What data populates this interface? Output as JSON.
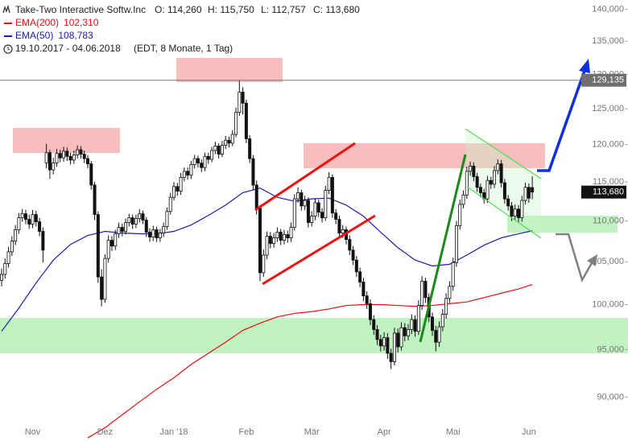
{
  "chart_data": {
    "type": "candlestick",
    "title": "Take-Two Interactive Softw.Inc",
    "ohlc_labels": [
      "O: 114,260",
      "H: 115,750",
      "L: 112,757",
      "C: 113,680"
    ],
    "date_range": "19.10.2017 - 04.06.2018",
    "period": "(EDT, 8 Monate, 1 Tag)",
    "log_scale": true,
    "grid": false,
    "up_color": "#ffffff",
    "down_color": "#111111",
    "ylim": [
      85600,
      141500
    ],
    "yticks": [
      {
        "value": 90000,
        "label": "90,000"
      },
      {
        "value": 95000,
        "label": "95,000"
      },
      {
        "value": 100000,
        "label": "100,000"
      },
      {
        "value": 105000,
        "label": "105,000"
      },
      {
        "value": 110000,
        "label": "110,000"
      },
      {
        "value": 115000,
        "label": "115,000"
      },
      {
        "value": 120000,
        "label": "120,000"
      },
      {
        "value": 125000,
        "label": "125,000"
      },
      {
        "value": 130000,
        "label": "130,000"
      },
      {
        "value": 135000,
        "label": "135,000"
      },
      {
        "value": 140000,
        "label": "140,000"
      }
    ],
    "price_line": {
      "value": 129135,
      "label": "129,135"
    },
    "last_price": {
      "value": 113680,
      "label": "113,680"
    },
    "categories": [
      null,
      null,
      null,
      null,
      null,
      null,
      null,
      null,
      null,
      "Nov",
      null,
      null,
      null,
      null,
      null,
      null,
      null,
      null,
      null,
      null,
      null,
      null,
      null,
      null,
      null,
      null,
      null,
      null,
      null,
      null,
      "Dez",
      null,
      null,
      null,
      null,
      null,
      null,
      null,
      null,
      null,
      null,
      null,
      null,
      null,
      null,
      null,
      null,
      null,
      null,
      null,
      "Jan '18",
      null,
      null,
      null,
      null,
      null,
      null,
      null,
      null,
      null,
      null,
      null,
      null,
      null,
      null,
      null,
      null,
      null,
      null,
      null,
      null,
      "Feb",
      null,
      null,
      null,
      null,
      null,
      null,
      null,
      null,
      null,
      null,
      null,
      null,
      null,
      null,
      null,
      null,
      null,
      null,
      "Mär",
      null,
      null,
      null,
      null,
      null,
      null,
      null,
      null,
      null,
      null,
      null,
      null,
      null,
      null,
      null,
      null,
      null,
      null,
      null,
      null,
      "Apr",
      null,
      null,
      null,
      null,
      null,
      null,
      null,
      null,
      null,
      null,
      null,
      null,
      null,
      null,
      null,
      null,
      null,
      null,
      null,
      "Mai",
      null,
      null,
      null,
      null,
      null,
      null,
      null,
      null,
      null,
      null,
      null,
      null,
      null,
      null,
      null,
      null,
      null,
      null,
      null,
      null,
      null,
      "Jun",
      null
    ],
    "open": [
      102800,
      103500,
      104800,
      106200,
      107500,
      108900,
      110400,
      110900,
      110200,
      109600,
      110800,
      109900,
      108700,
      117500,
      118900,
      116600,
      117500,
      118800,
      118200,
      119100,
      118400,
      117900,
      118600,
      119300,
      118700,
      118100,
      117400,
      114600,
      110800,
      103200,
      100600,
      105400,
      107600,
      106900,
      108400,
      109200,
      108700,
      109800,
      110400,
      109600,
      110300,
      110900,
      110100,
      108600,
      108000,
      108900,
      107900,
      108500,
      109300,
      111200,
      113000,
      114400,
      113800,
      115600,
      116400,
      115900,
      117300,
      118100,
      117500,
      116900,
      118400,
      118000,
      119200,
      119800,
      118700,
      119900,
      120600,
      120200,
      121400,
      124500,
      127400,
      125800,
      120800,
      118100,
      114600,
      111600,
      103700,
      105800,
      108100,
      107200,
      107900,
      108600,
      107600,
      108300,
      107900,
      109200,
      112800,
      113600,
      111900,
      112600,
      109800,
      110600,
      112300,
      111100,
      110400,
      113900,
      115600,
      111000,
      110200,
      108500,
      108900,
      107700,
      106400,
      105200,
      103800,
      102600,
      101000,
      100100,
      98300,
      97200,
      96100,
      95400,
      96300,
      94600,
      93700,
      96800,
      95300,
      97400,
      96500,
      97200,
      98300,
      97000,
      99900,
      102700,
      100800,
      98600,
      97100,
      95800,
      97500,
      98900,
      100700,
      102100,
      104900,
      109400,
      112100,
      113300,
      116400,
      117100,
      115700,
      114300,
      113600,
      112800,
      115200,
      114700,
      116500,
      117400,
      114900,
      112800,
      111900,
      110600,
      111500,
      110400,
      112600,
      114300,
      114260
    ],
    "high": [
      104200,
      105400,
      106800,
      108100,
      109500,
      111000,
      111500,
      111400,
      110800,
      111400,
      111300,
      110400,
      109200,
      120100,
      119300,
      118200,
      119400,
      119300,
      119700,
      119600,
      118900,
      119200,
      119900,
      119800,
      119200,
      118600,
      117800,
      115000,
      111200,
      104100,
      105900,
      108200,
      108100,
      108900,
      109800,
      109700,
      110300,
      110900,
      110800,
      110800,
      111500,
      111300,
      110500,
      109100,
      109400,
      109300,
      109000,
      109800,
      111700,
      113600,
      115000,
      114900,
      116200,
      116900,
      116900,
      117800,
      118600,
      118500,
      118000,
      118900,
      118900,
      119700,
      120400,
      120200,
      120500,
      121200,
      121100,
      122000,
      125200,
      129135,
      128100,
      126300,
      121300,
      118600,
      115200,
      112000,
      106500,
      108700,
      108600,
      108500,
      109200,
      109000,
      108900,
      108800,
      109800,
      113400,
      114300,
      114000,
      113200,
      113000,
      111200,
      112900,
      112700,
      111600,
      114500,
      116300,
      116000,
      111500,
      110700,
      109500,
      109300,
      108200,
      106900,
      105700,
      104300,
      103100,
      101500,
      100600,
      98800,
      97700,
      96600,
      96900,
      96800,
      95100,
      97400,
      97300,
      98000,
      97900,
      97800,
      98900,
      98800,
      100500,
      103300,
      103100,
      101300,
      99100,
      97600,
      98100,
      99500,
      101300,
      102700,
      105500,
      110000,
      112700,
      113900,
      117000,
      117700,
      117600,
      116200,
      114800,
      114100,
      115800,
      115700,
      117100,
      118000,
      117900,
      115400,
      113300,
      112400,
      112100,
      112000,
      113200,
      114900,
      114800,
      115750
    ],
    "low": [
      102100,
      103000,
      104300,
      105700,
      107000,
      108400,
      109900,
      109600,
      109000,
      109100,
      109300,
      108100,
      104900,
      116800,
      115400,
      116000,
      117000,
      117600,
      117700,
      117800,
      117300,
      117400,
      118100,
      118100,
      117500,
      116800,
      114000,
      110100,
      102500,
      99800,
      100200,
      104900,
      106300,
      106400,
      107900,
      108100,
      108300,
      109300,
      109000,
      109100,
      109800,
      109600,
      108000,
      107400,
      107500,
      107400,
      107400,
      108000,
      108900,
      110800,
      112600,
      113200,
      113300,
      115100,
      115300,
      115400,
      116800,
      116900,
      116300,
      116400,
      117400,
      117600,
      118700,
      118100,
      118300,
      119400,
      119600,
      119800,
      121000,
      124000,
      124200,
      120200,
      117500,
      114000,
      110800,
      102700,
      103200,
      105300,
      106600,
      106700,
      107400,
      107000,
      107100,
      107300,
      107400,
      108800,
      112300,
      111300,
      111400,
      109200,
      109300,
      110100,
      110500,
      109800,
      110000,
      113400,
      110400,
      109600,
      107900,
      107900,
      107100,
      105800,
      104600,
      103200,
      102000,
      100400,
      99500,
      97700,
      96600,
      95500,
      94800,
      94900,
      94000,
      92900,
      93300,
      94700,
      94900,
      95900,
      96000,
      96700,
      96400,
      96600,
      99400,
      100200,
      98000,
      96500,
      94800,
      95300,
      97000,
      98400,
      100200,
      101600,
      104400,
      108900,
      111600,
      112800,
      115800,
      115100,
      113700,
      113000,
      112200,
      112300,
      114100,
      114200,
      116000,
      114300,
      112200,
      111300,
      110000,
      110100,
      109800,
      109900,
      112100,
      112300,
      112757
    ],
    "close": [
      103500,
      104800,
      106200,
      107500,
      108900,
      110400,
      110900,
      110200,
      109600,
      110800,
      109900,
      108700,
      106400,
      118900,
      116600,
      117500,
      118800,
      118200,
      119100,
      118400,
      117900,
      118600,
      119300,
      118700,
      118100,
      117400,
      114600,
      110800,
      103200,
      100600,
      105400,
      107600,
      106900,
      108400,
      109200,
      108700,
      109800,
      110400,
      109600,
      110300,
      110900,
      110100,
      108600,
      108000,
      108900,
      107900,
      108500,
      109300,
      111200,
      113000,
      114400,
      113800,
      115600,
      116400,
      115900,
      117300,
      118100,
      117500,
      116900,
      118400,
      118000,
      119200,
      119800,
      118700,
      119900,
      120600,
      120200,
      121400,
      124500,
      127400,
      125800,
      120800,
      118100,
      114600,
      111600,
      103700,
      105800,
      108100,
      107200,
      107900,
      108600,
      107600,
      108300,
      107900,
      109200,
      112800,
      113600,
      111900,
      112600,
      109800,
      110600,
      112300,
      111100,
      110400,
      113900,
      115600,
      111000,
      110200,
      108500,
      108900,
      107700,
      106400,
      105200,
      103800,
      102600,
      101000,
      100100,
      98300,
      97200,
      96100,
      95400,
      96300,
      94600,
      93700,
      96800,
      95300,
      97400,
      96500,
      97200,
      98300,
      97000,
      99900,
      102700,
      100800,
      98600,
      97100,
      95800,
      97500,
      98900,
      100700,
      102100,
      104900,
      109400,
      112100,
      113300,
      116400,
      117100,
      115700,
      114300,
      113600,
      112800,
      115200,
      114700,
      116500,
      117400,
      114900,
      112800,
      111900,
      110600,
      111500,
      110400,
      112600,
      114300,
      112900,
      113680
    ],
    "series": [
      {
        "name": "EMA(200)",
        "color": "#e01010",
        "x": [
          25,
          30,
          35,
          40,
          45,
          50,
          55,
          60,
          65,
          70,
          75,
          80,
          85,
          90,
          95,
          100,
          105,
          110,
          115,
          120,
          125,
          130,
          135,
          140,
          145,
          150,
          154
        ],
        "values": [
          85900,
          86900,
          88200,
          89500,
          90800,
          92000,
          93400,
          94600,
          95800,
          97100,
          97900,
          98600,
          99000,
          99200,
          99500,
          99900,
          100000,
          100000,
          99900,
          99800,
          99900,
          100100,
          100300,
          100800,
          101300,
          101800,
          102310
        ],
        "value_labels": [
          null,
          null,
          null,
          null,
          null,
          null,
          null,
          null,
          null,
          null,
          null,
          null,
          null,
          null,
          null,
          null,
          null,
          null,
          null,
          null,
          null,
          null,
          null,
          null,
          null,
          null,
          "102,310"
        ]
      },
      {
        "name": "EMA(50)",
        "color": "#1c1ca8",
        "x": [
          0,
          5,
          10,
          15,
          20,
          25,
          30,
          35,
          40,
          45,
          50,
          55,
          60,
          65,
          70,
          75,
          80,
          85,
          90,
          95,
          100,
          105,
          110,
          115,
          120,
          125,
          130,
          135,
          140,
          145,
          150,
          154
        ],
        "values": [
          97000,
          99600,
          102500,
          105200,
          107100,
          108200,
          108700,
          108500,
          108400,
          108400,
          108700,
          109500,
          110700,
          112000,
          113600,
          114200,
          113000,
          112500,
          112800,
          112900,
          112000,
          110600,
          108600,
          106700,
          105200,
          104500,
          104700,
          105800,
          107000,
          107900,
          108400,
          108783
        ],
        "value_labels": [
          null,
          null,
          null,
          null,
          null,
          null,
          null,
          null,
          null,
          null,
          null,
          null,
          null,
          null,
          null,
          null,
          null,
          null,
          null,
          null,
          null,
          null,
          null,
          null,
          null,
          null,
          null,
          null,
          null,
          null,
          null,
          "108,783"
        ]
      }
    ]
  }
}
